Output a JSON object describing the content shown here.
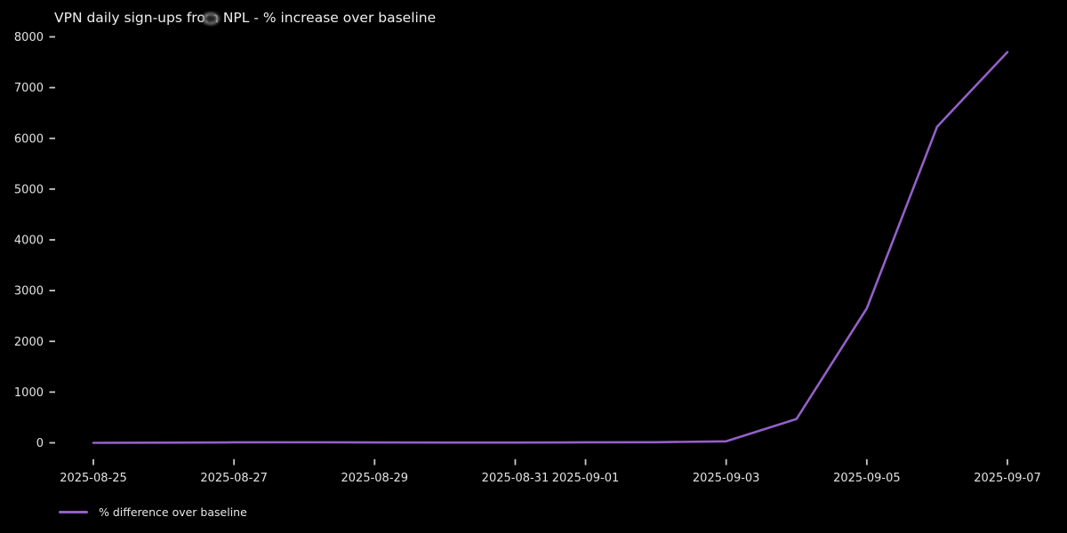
{
  "chart_data": {
    "type": "line",
    "title": "VPN daily sign-ups from NPL - % increase over baseline",
    "xlabel": "",
    "ylabel": "",
    "x": [
      "2025-08-25",
      "2025-08-26",
      "2025-08-27",
      "2025-08-28",
      "2025-08-29",
      "2025-08-30",
      "2025-08-31",
      "2025-09-01",
      "2025-09-02",
      "2025-09-03",
      "2025-09-04",
      "2025-09-05",
      "2025-09-06",
      "2025-09-07"
    ],
    "series": [
      {
        "name": "% difference over baseline",
        "color": "#9360c8",
        "values": [
          0,
          4,
          9,
          11,
          7,
          5,
          6,
          9,
          12,
          30,
          470,
          2650,
          6230,
          7700
        ]
      }
    ],
    "ylim": [
      0,
      8000
    ],
    "yticks": [
      0,
      1000,
      2000,
      3000,
      4000,
      5000,
      6000,
      7000,
      8000
    ],
    "xtick_labels": [
      "2025-08-25",
      "2025-08-27",
      "2025-08-29",
      "2025-08-31",
      "2025-09-01",
      "2025-09-03",
      "2025-09-05",
      "2025-09-07"
    ],
    "grid": false,
    "legend_position": "lower-left",
    "background": "#000000",
    "text_color": "#e2e2e2",
    "tick_mark_color": "#c8c8c8"
  }
}
